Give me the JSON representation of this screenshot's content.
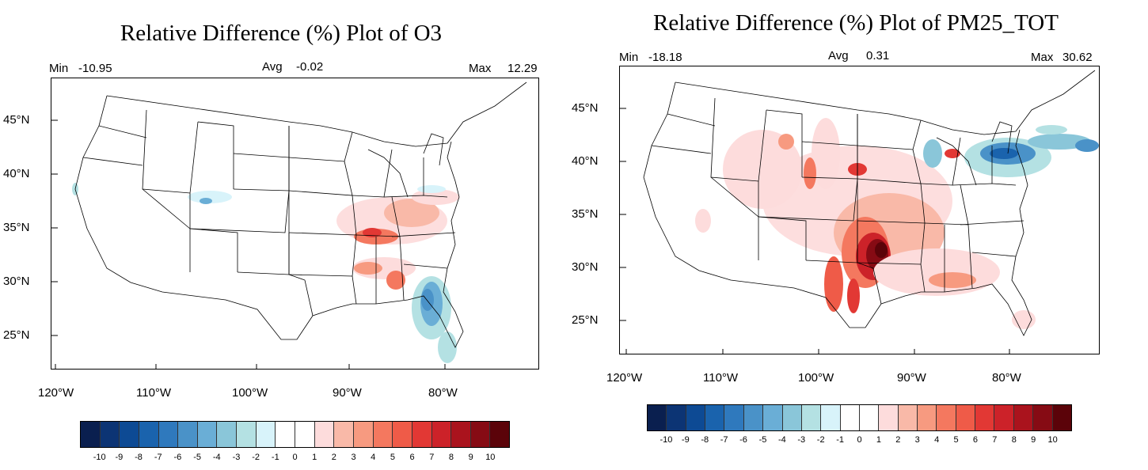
{
  "colorbar": {
    "colors": [
      "#0a1f4f",
      "#0c3474",
      "#0d4a94",
      "#1a63ad",
      "#2f79bd",
      "#4a92c8",
      "#6aaed6",
      "#8ac6d9",
      "#b4e1e3",
      "#d8f3fa",
      "#ffffff",
      "#ffffff",
      "#fddcdc",
      "#f9b9a8",
      "#f79a80",
      "#f4785f",
      "#ef5b48",
      "#e23834",
      "#cc2229",
      "#aa131d",
      "#860b14",
      "#5b0309"
    ],
    "labels": [
      "-10",
      "-9",
      "-8",
      "-7",
      "-6",
      "-5",
      "-4",
      "-3",
      "-2",
      "-1",
      "0",
      "1",
      "2",
      "3",
      "4",
      "5",
      "6",
      "7",
      "8",
      "9",
      "10"
    ]
  },
  "panels": [
    {
      "id": "o3",
      "title": "Relative Difference (%) Plot of O3",
      "min_label": "Min",
      "min_value": "-10.95",
      "avg_label": "Avg",
      "avg_value": "-0.02",
      "max_label": "Max",
      "max_value": "12.29",
      "lat_labels": [
        "45°N",
        "40°N",
        "35°N",
        "30°N",
        "25°N"
      ],
      "lon_labels": [
        "120°W",
        "110°W",
        "100°W",
        "90°W",
        "80°W"
      ]
    },
    {
      "id": "pm25",
      "title": "Relative Difference (%) Plot of PM25_TOT",
      "min_label": "Min",
      "min_value": "-18.18",
      "avg_label": "Avg",
      "avg_value": "0.31",
      "max_label": "Max",
      "max_value": "30.62",
      "lat_labels": [
        "45°N",
        "40°N",
        "35°N",
        "30°N",
        "25°N"
      ],
      "lon_labels": [
        "120°W",
        "110°W",
        "100°W",
        "90°W",
        "80°W"
      ]
    }
  ]
}
